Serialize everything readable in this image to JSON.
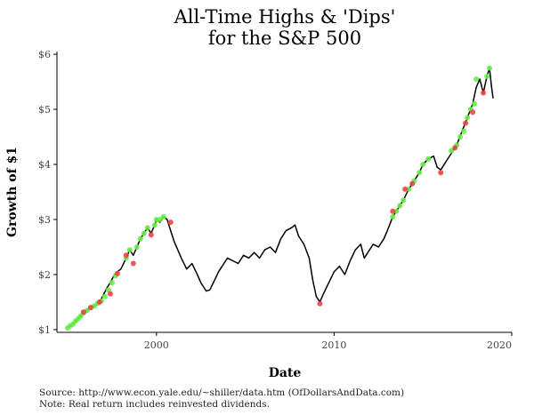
{
  "chart_data": {
    "type": "line",
    "title": [
      "All-Time Highs & 'Dips'",
      "for the S&P 500"
    ],
    "xlabel": "Date",
    "ylabel": "Growth of $1",
    "xlim": [
      1994.4,
      2020
    ],
    "ylim": [
      0.95,
      6.05
    ],
    "x_ticks": [
      {
        "value": 2000,
        "label": "2000"
      },
      {
        "value": 2010,
        "label": "2010"
      },
      {
        "value": 2020,
        "label": "2020"
      }
    ],
    "y_ticks": [
      {
        "value": 1,
        "label": "$1"
      },
      {
        "value": 2,
        "label": "$2"
      },
      {
        "value": 3,
        "label": "$3"
      },
      {
        "value": 4,
        "label": "$4"
      },
      {
        "value": 5,
        "label": "$5"
      },
      {
        "value": 6,
        "label": "$6"
      }
    ],
    "grid": false,
    "colors": {
      "line": "#000000",
      "high": "#66ee44",
      "dip": "#ee4444"
    },
    "series": [
      {
        "x": [
          1995.0,
          1995.3,
          1995.6,
          1995.9,
          1996.2,
          1996.5,
          1996.8,
          1997.0,
          1997.2,
          1997.4,
          1997.6,
          1997.8,
          1998.0,
          1998.3,
          1998.5,
          1998.7,
          1998.9,
          1999.1,
          1999.3,
          1999.5,
          1999.7,
          1999.9,
          2000.0,
          2000.2,
          2000.4,
          2000.6,
          2000.8,
          2001.0,
          2001.2,
          2001.4,
          2001.7,
          2002.0,
          2002.3,
          2002.5,
          2002.8,
          2003.0,
          2003.2,
          2003.5,
          2003.8,
          2004.0,
          2004.3,
          2004.6,
          2004.9,
          2005.2,
          2005.5,
          2005.8,
          2006.1,
          2006.4,
          2006.7,
          2007.0,
          2007.3,
          2007.6,
          2007.8,
          2008.0,
          2008.3,
          2008.6,
          2008.8,
          2009.0,
          2009.2,
          2009.4,
          2009.7,
          2010.0,
          2010.3,
          2010.6,
          2010.9,
          2011.2,
          2011.5,
          2011.7,
          2011.9,
          2012.2,
          2012.5,
          2012.8,
          2013.0,
          2013.3,
          2013.6,
          2013.9,
          2014.2,
          2014.5,
          2014.8,
          2015.0,
          2015.3,
          2015.6,
          2015.8,
          2016.0,
          2016.3,
          2016.6,
          2016.9,
          2017.2,
          2017.5,
          2017.8,
          2018.0,
          2018.2,
          2018.4,
          2018.6,
          2018.75,
          2018.85,
          2018.95
        ],
        "values": [
          1.03,
          1.1,
          1.2,
          1.3,
          1.38,
          1.43,
          1.5,
          1.62,
          1.75,
          1.85,
          1.98,
          2.05,
          2.1,
          2.3,
          2.45,
          2.35,
          2.5,
          2.65,
          2.75,
          2.85,
          2.75,
          2.9,
          3.0,
          2.95,
          3.05,
          3.0,
          2.8,
          2.6,
          2.45,
          2.3,
          2.1,
          2.2,
          2.0,
          1.85,
          1.7,
          1.72,
          1.85,
          2.05,
          2.2,
          2.3,
          2.25,
          2.2,
          2.35,
          2.3,
          2.4,
          2.3,
          2.45,
          2.5,
          2.4,
          2.65,
          2.8,
          2.85,
          2.9,
          2.7,
          2.55,
          2.3,
          1.9,
          1.6,
          1.5,
          1.65,
          1.85,
          2.05,
          2.15,
          2.0,
          2.25,
          2.45,
          2.55,
          2.3,
          2.4,
          2.55,
          2.5,
          2.65,
          2.8,
          3.05,
          3.2,
          3.35,
          3.55,
          3.7,
          3.85,
          4.0,
          4.1,
          4.15,
          3.95,
          3.9,
          4.05,
          4.2,
          4.35,
          4.6,
          4.85,
          5.1,
          5.4,
          5.55,
          5.3,
          5.6,
          5.75,
          5.45,
          5.2
        ]
      }
    ],
    "highs": {
      "x": [
        1995.0,
        1995.15,
        1995.3,
        1995.45,
        1995.6,
        1995.75,
        1995.9,
        1996.1,
        1996.3,
        1996.5,
        1996.7,
        1996.9,
        1997.1,
        1997.3,
        1997.5,
        1997.7,
        1998.3,
        1998.5,
        1998.9,
        1999.1,
        1999.3,
        1999.5,
        1999.9,
        2000.0,
        2000.2,
        2000.4,
        2013.3,
        2013.5,
        2013.7,
        2013.9,
        2014.2,
        2014.5,
        2014.8,
        2015.0,
        2015.3,
        2016.6,
        2016.9,
        2017.1,
        2017.3,
        2017.5,
        2017.7,
        2017.9,
        2018.0,
        2018.6,
        2018.75
      ],
      "values": [
        1.03,
        1.07,
        1.1,
        1.16,
        1.2,
        1.25,
        1.3,
        1.35,
        1.4,
        1.43,
        1.48,
        1.52,
        1.6,
        1.72,
        1.85,
        1.98,
        2.3,
        2.45,
        2.5,
        2.65,
        2.75,
        2.85,
        2.9,
        3.0,
        3.0,
        3.05,
        3.05,
        3.15,
        3.25,
        3.35,
        3.55,
        3.7,
        3.85,
        4.0,
        4.1,
        4.25,
        4.35,
        4.5,
        4.6,
        4.85,
        5.0,
        5.1,
        5.55,
        5.6,
        5.75
      ]
    },
    "dips": {
      "x": [
        1995.9,
        1996.3,
        1996.8,
        1997.4,
        1997.8,
        1998.3,
        1998.7,
        1999.7,
        2000.8,
        2009.2,
        2013.3,
        2014.0,
        2014.4,
        2016.0,
        2016.8,
        2017.4,
        2017.8,
        2018.4
      ],
      "values": [
        1.32,
        1.4,
        1.5,
        1.65,
        2.02,
        2.35,
        2.2,
        2.72,
        2.95,
        1.47,
        3.15,
        3.55,
        3.65,
        3.85,
        4.3,
        4.75,
        4.95,
        5.3
      ]
    }
  },
  "caption": [
    "Source:  http://www.econ.yale.edu/~shiller/data.htm (OfDollarsAndData.com)",
    "Note:  Real return includes reinvested dividends."
  ]
}
